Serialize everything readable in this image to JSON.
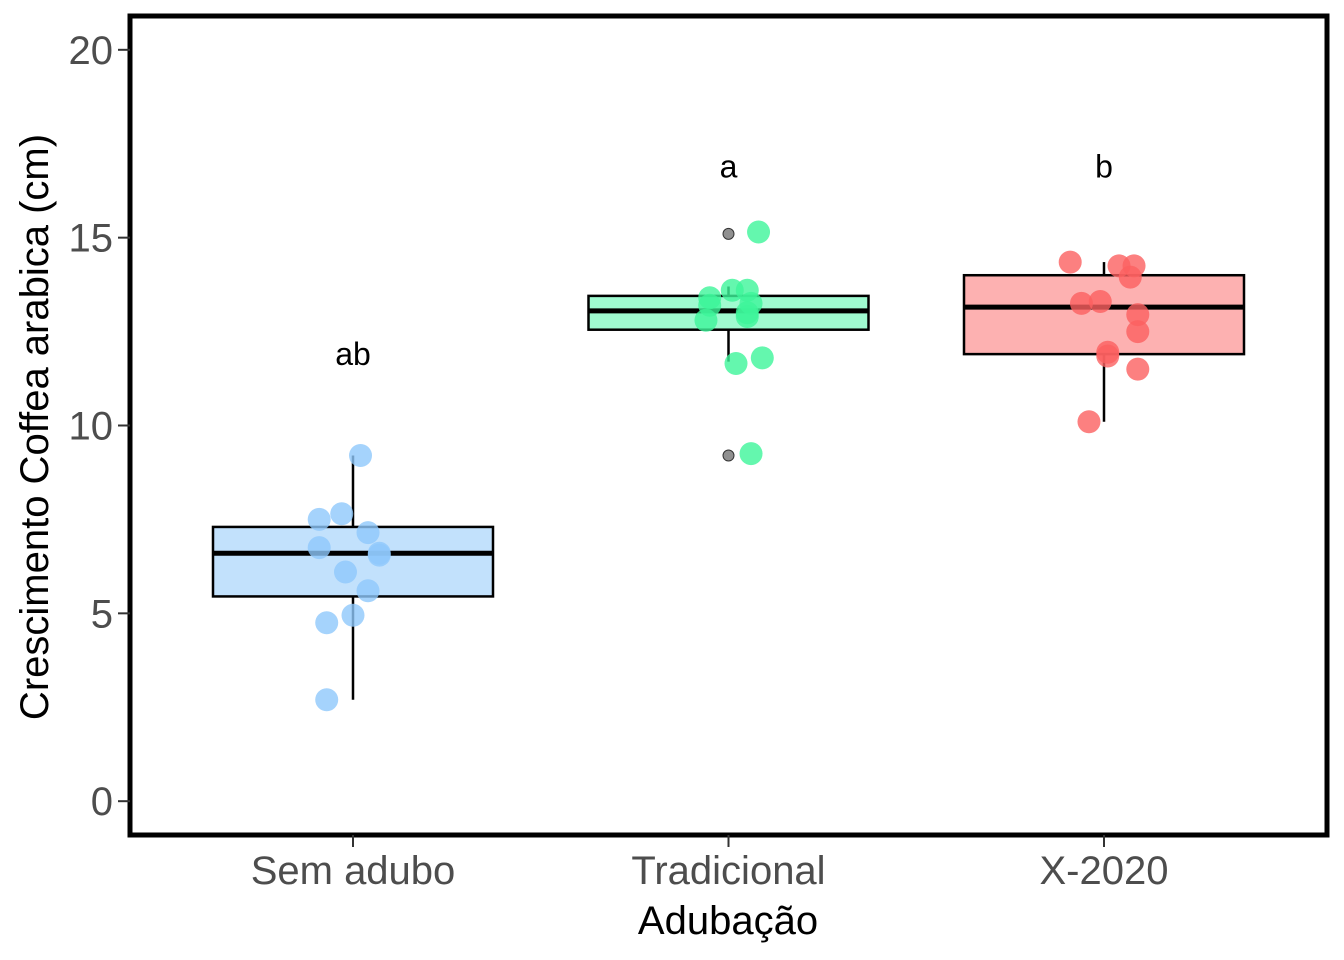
{
  "chart_data": {
    "type": "box",
    "xlabel": "Adubação",
    "ylabel": "Crescimento Coffea arabica (cm)",
    "ylim": [
      -0.9,
      20.9
    ],
    "yticks": [
      0,
      5,
      10,
      15,
      20
    ],
    "grid": false,
    "legend": "none",
    "groups": [
      {
        "category": "Sem adubo",
        "color": "#8fc8fb",
        "box_fill": "#c2e1fc",
        "letter": "ab",
        "letter_y": 11.9,
        "q1": 5.45,
        "median": 6.6,
        "q3": 7.3,
        "whisker_low": 2.7,
        "whisker_high": 9.2,
        "outliers": [],
        "points": [
          {
            "x": -0.07,
            "y": 2.7
          },
          {
            "x": -0.07,
            "y": 4.75
          },
          {
            "x": 0.0,
            "y": 4.95
          },
          {
            "x": 0.04,
            "y": 5.6
          },
          {
            "x": -0.02,
            "y": 6.1
          },
          {
            "x": -0.09,
            "y": 6.75
          },
          {
            "x": 0.07,
            "y": 6.6
          },
          {
            "x": 0.07,
            "y": 6.55
          },
          {
            "x": 0.04,
            "y": 7.15
          },
          {
            "x": -0.09,
            "y": 7.5
          },
          {
            "x": -0.03,
            "y": 7.65
          },
          {
            "x": 0.02,
            "y": 9.2
          }
        ]
      },
      {
        "category": "Tradicional",
        "color": "#3df59a",
        "box_fill": "#9ffad0",
        "letter": "a",
        "letter_y": 16.9,
        "q1": 12.55,
        "median": 13.05,
        "q3": 13.45,
        "whisker_low": 11.7,
        "whisker_high": 13.7,
        "outliers": [
          9.2,
          15.1
        ],
        "points": [
          {
            "x": 0.06,
            "y": 9.25
          },
          {
            "x": 0.02,
            "y": 11.65
          },
          {
            "x": 0.09,
            "y": 11.8
          },
          {
            "x": -0.06,
            "y": 12.8
          },
          {
            "x": 0.05,
            "y": 12.9
          },
          {
            "x": 0.05,
            "y": 13.0
          },
          {
            "x": -0.05,
            "y": 13.2
          },
          {
            "x": 0.06,
            "y": 13.25
          },
          {
            "x": -0.05,
            "y": 13.4
          },
          {
            "x": 0.01,
            "y": 13.6
          },
          {
            "x": 0.05,
            "y": 13.6
          },
          {
            "x": 0.08,
            "y": 15.15
          }
        ]
      },
      {
        "category": "X-2020",
        "color": "#fb6060",
        "box_fill": "#fdb1b1",
        "letter": "b",
        "letter_y": 16.9,
        "q1": 11.9,
        "median": 13.15,
        "q3": 14.0,
        "whisker_low": 10.1,
        "whisker_high": 14.35,
        "outliers": [],
        "points": [
          {
            "x": -0.04,
            "y": 10.1
          },
          {
            "x": 0.09,
            "y": 11.5
          },
          {
            "x": 0.01,
            "y": 11.85
          },
          {
            "x": 0.01,
            "y": 11.95
          },
          {
            "x": 0.09,
            "y": 12.5
          },
          {
            "x": 0.09,
            "y": 12.95
          },
          {
            "x": -0.06,
            "y": 13.25
          },
          {
            "x": -0.01,
            "y": 13.3
          },
          {
            "x": 0.07,
            "y": 13.95
          },
          {
            "x": 0.04,
            "y": 14.25
          },
          {
            "x": 0.08,
            "y": 14.25
          },
          {
            "x": -0.09,
            "y": 14.35
          }
        ]
      }
    ]
  }
}
